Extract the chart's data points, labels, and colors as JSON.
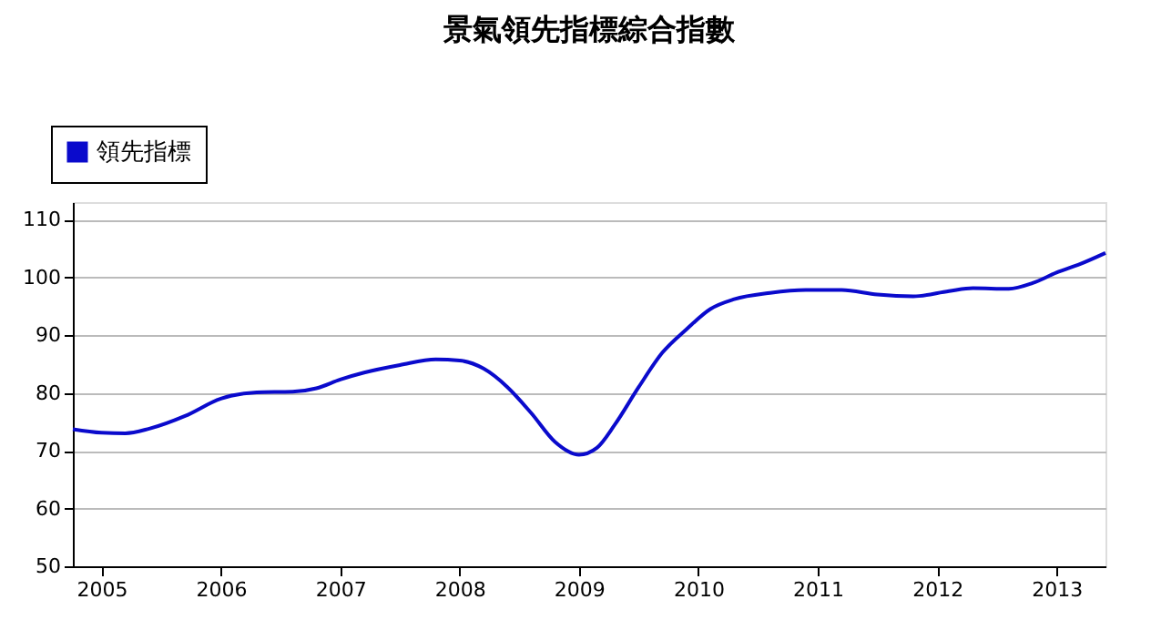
{
  "chart_data": {
    "type": "line",
    "title": "景氣領先指標綜合指數",
    "x": [
      2004.76,
      2005.0,
      2005.2,
      2005.4,
      2005.7,
      2006.0,
      2006.3,
      2006.6,
      2006.8,
      2007.0,
      2007.2,
      2007.5,
      2007.8,
      2008.0,
      2008.2,
      2008.4,
      2008.6,
      2008.8,
      2009.0,
      2009.15,
      2009.3,
      2009.5,
      2009.7,
      2009.9,
      2010.1,
      2010.3,
      2010.6,
      2010.9,
      2011.2,
      2011.5,
      2011.8,
      2012.1,
      2012.3,
      2012.6,
      2012.8,
      2013.0,
      2013.2,
      2013.41
    ],
    "series": [
      {
        "name": "領先指標",
        "color": "#0a0acc",
        "values": [
          73.7,
          73.1,
          73.0,
          73.8,
          76.0,
          79.0,
          80.1,
          80.2,
          80.8,
          82.3,
          83.5,
          84.8,
          85.8,
          85.6,
          84.2,
          81.0,
          76.5,
          71.5,
          69.3,
          70.5,
          74.5,
          81.0,
          87.0,
          91.0,
          94.5,
          96.2,
          97.3,
          97.8,
          97.8,
          97.0,
          96.7,
          97.6,
          98.1,
          98.0,
          99.0,
          100.8,
          102.3,
          104.2
        ]
      }
    ],
    "xlim": [
      2004.76,
      2013.41
    ],
    "xticks": [
      2005,
      2006,
      2007,
      2008,
      2009,
      2010,
      2011,
      2012,
      2013
    ],
    "ylim": [
      50,
      113
    ],
    "yticks": [
      50,
      60,
      70,
      80,
      90,
      100,
      110
    ],
    "grid": "y",
    "legend": "top left",
    "marker": "none",
    "line_style": "solid"
  }
}
